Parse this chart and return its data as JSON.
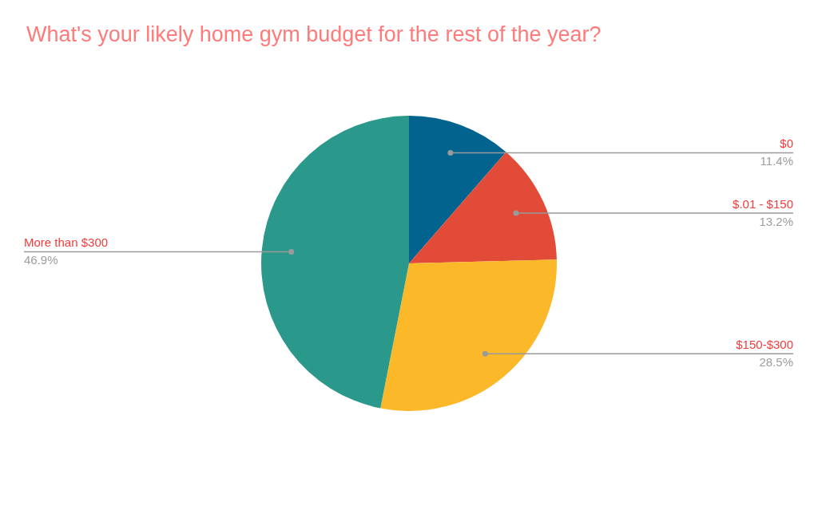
{
  "chart_data": {
    "type": "pie",
    "title": "What's your likely home gym budget for the rest of the year?",
    "categories": [
      "$0",
      "$.01 - $150",
      "$150-$300",
      "More than $300"
    ],
    "values": [
      11.4,
      13.2,
      28.5,
      46.9
    ],
    "colors": [
      "#02638f",
      "#e24b37",
      "#fbb829",
      "#2a998b"
    ],
    "value_labels": [
      "11.4%",
      "13.2%",
      "28.5%",
      "46.9%"
    ]
  }
}
